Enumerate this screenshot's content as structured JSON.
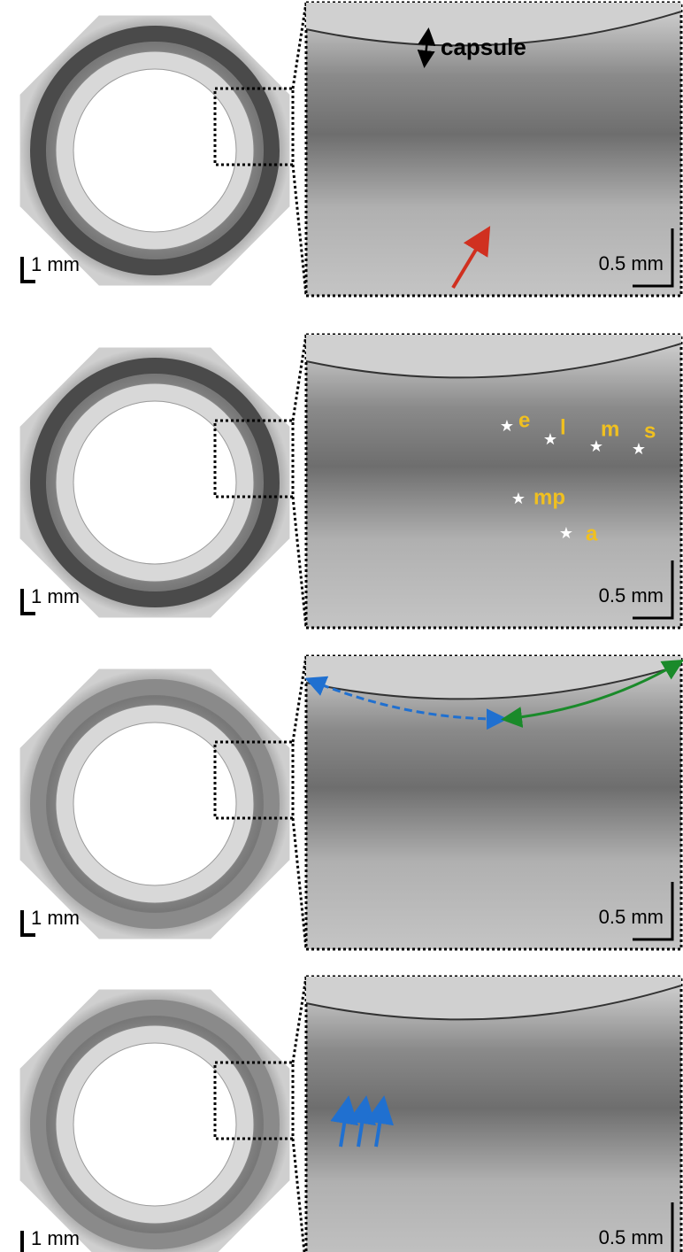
{
  "panels": [
    {
      "overview_scale": "1 mm",
      "zoom_scale": "0.5 mm",
      "annotations": [
        "capsule"
      ]
    },
    {
      "overview_scale": "1 mm",
      "zoom_scale": "0.5 mm",
      "annotations": [
        "e",
        "l",
        "m",
        "s",
        "mp",
        "a"
      ]
    },
    {
      "overview_scale": "1 mm",
      "zoom_scale": "0.5 mm"
    },
    {
      "overview_scale": "1 mm",
      "zoom_scale": "0.5 mm"
    }
  ]
}
